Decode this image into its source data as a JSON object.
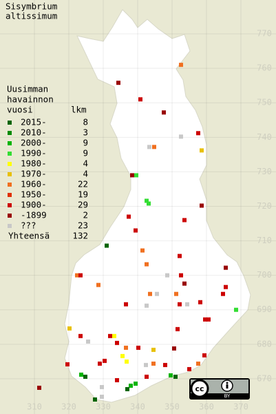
{
  "chart_data": {
    "type": "grid-map",
    "title": [
      "Sisymbrium",
      "altissimum"
    ],
    "xlim": [
      300,
      380.2
    ],
    "ylim": [
      659.8,
      779.8
    ],
    "xticks": [
      310,
      320,
      330,
      340,
      350,
      360,
      370
    ],
    "yticks": [
      770,
      760,
      750,
      740,
      730,
      720,
      710,
      700,
      690,
      680,
      670
    ],
    "grid": true,
    "legend": {
      "title": [
        "Uusimman",
        "havainnon",
        "vuosi"
      ],
      "count_header": "lkm",
      "items": [
        {
          "label": "2015-",
          "color": "#006400",
          "count": 8
        },
        {
          "label": "2010-",
          "color": "#008a00",
          "count": 3
        },
        {
          "label": "2000-",
          "color": "#00b400",
          "count": 9
        },
        {
          "label": "1990-",
          "color": "#33dd33",
          "count": 9
        },
        {
          "label": "1980-",
          "color": "#ffff00",
          "count": 4
        },
        {
          "label": "1970-",
          "color": "#e8c000",
          "count": 4
        },
        {
          "label": "1960-",
          "color": "#f07020",
          "count": 22
        },
        {
          "label": "1950-",
          "color": "#e03000",
          "count": 19
        },
        {
          "label": "1900-",
          "color": "#cc0000",
          "count": 29
        },
        {
          "label": "-1899",
          "color": "#990000",
          "count": 2
        },
        {
          "label": "???",
          "color": "#c8c8c8",
          "count": 23
        }
      ],
      "total_label": "Yhteensä",
      "total": 132
    },
    "cells": [
      [
        352.6,
        761,
        6
      ],
      [
        334.4,
        755.8,
        9
      ],
      [
        340.8,
        751,
        8
      ],
      [
        347.6,
        747.2,
        9
      ],
      [
        357.6,
        741.2,
        8
      ],
      [
        343.4,
        737.2,
        10
      ],
      [
        344.8,
        737.2,
        6
      ],
      [
        352.6,
        740.2,
        10
      ],
      [
        358.6,
        736.2,
        5
      ],
      [
        338.4,
        729,
        9
      ],
      [
        339.6,
        729,
        3
      ],
      [
        342.6,
        721.6,
        3
      ],
      [
        343.2,
        720.8,
        3
      ],
      [
        358.6,
        720.2,
        9
      ],
      [
        337.4,
        717,
        8
      ],
      [
        353.6,
        716,
        8
      ],
      [
        339.4,
        713,
        8
      ],
      [
        331,
        708.6,
        0
      ],
      [
        341.4,
        707.2,
        6
      ],
      [
        352.2,
        705.6,
        8
      ],
      [
        342.6,
        703.2,
        6
      ],
      [
        365.6,
        702.2,
        9
      ],
      [
        322.4,
        700,
        6
      ],
      [
        323.4,
        700,
        8
      ],
      [
        352.6,
        700,
        8
      ],
      [
        348.6,
        700,
        10
      ],
      [
        353.6,
        697.6,
        9
      ],
      [
        328.6,
        697.2,
        6
      ],
      [
        365.6,
        696.6,
        8
      ],
      [
        351.2,
        694.6,
        6
      ],
      [
        364.8,
        694.6,
        8
      ],
      [
        343.6,
        694.6,
        6
      ],
      [
        345.6,
        694.6,
        10
      ],
      [
        336.6,
        691.6,
        8
      ],
      [
        352.2,
        691.6,
        8
      ],
      [
        354.4,
        691.6,
        10
      ],
      [
        368.6,
        690,
        3
      ],
      [
        358.2,
        692.2,
        8
      ],
      [
        342.6,
        691.2,
        10
      ],
      [
        359.6,
        687.2,
        8
      ],
      [
        360.6,
        687.2,
        8
      ],
      [
        351.6,
        684.4,
        8
      ],
      [
        320.2,
        684.6,
        5
      ],
      [
        323.4,
        682.4,
        8
      ],
      [
        325.6,
        680.8,
        10
      ],
      [
        332,
        682.4,
        8
      ],
      [
        333.2,
        682.4,
        4
      ],
      [
        334,
        680.4,
        8
      ],
      [
        336.6,
        679,
        6
      ],
      [
        344.6,
        678.4,
        5
      ],
      [
        340.2,
        679,
        8
      ],
      [
        335.6,
        676.6,
        4
      ],
      [
        336.8,
        675,
        4
      ],
      [
        329,
        674.4,
        8
      ],
      [
        330.4,
        675.2,
        8
      ],
      [
        319.6,
        674.2,
        8
      ],
      [
        342.4,
        674,
        10
      ],
      [
        344.6,
        674.4,
        6
      ],
      [
        348,
        674,
        8
      ],
      [
        359.4,
        676.8,
        8
      ],
      [
        357.6,
        674.4,
        6
      ],
      [
        355,
        672.8,
        8
      ],
      [
        323.6,
        671.2,
        2
      ],
      [
        324.8,
        670.6,
        0
      ],
      [
        349.6,
        671,
        2
      ],
      [
        351,
        670.6,
        0
      ],
      [
        339.4,
        668.6,
        2
      ],
      [
        338,
        668,
        2
      ],
      [
        337,
        667,
        0
      ],
      [
        334,
        669.6,
        8
      ],
      [
        329.6,
        667.6,
        10
      ],
      [
        311.4,
        667.4,
        9
      ],
      [
        327.6,
        664,
        0
      ],
      [
        329.6,
        664.8,
        10
      ],
      [
        342.6,
        670.6,
        8
      ],
      [
        350.6,
        678.8,
        9
      ]
    ]
  },
  "license": {
    "cc": "cc",
    "badge": "BY"
  }
}
